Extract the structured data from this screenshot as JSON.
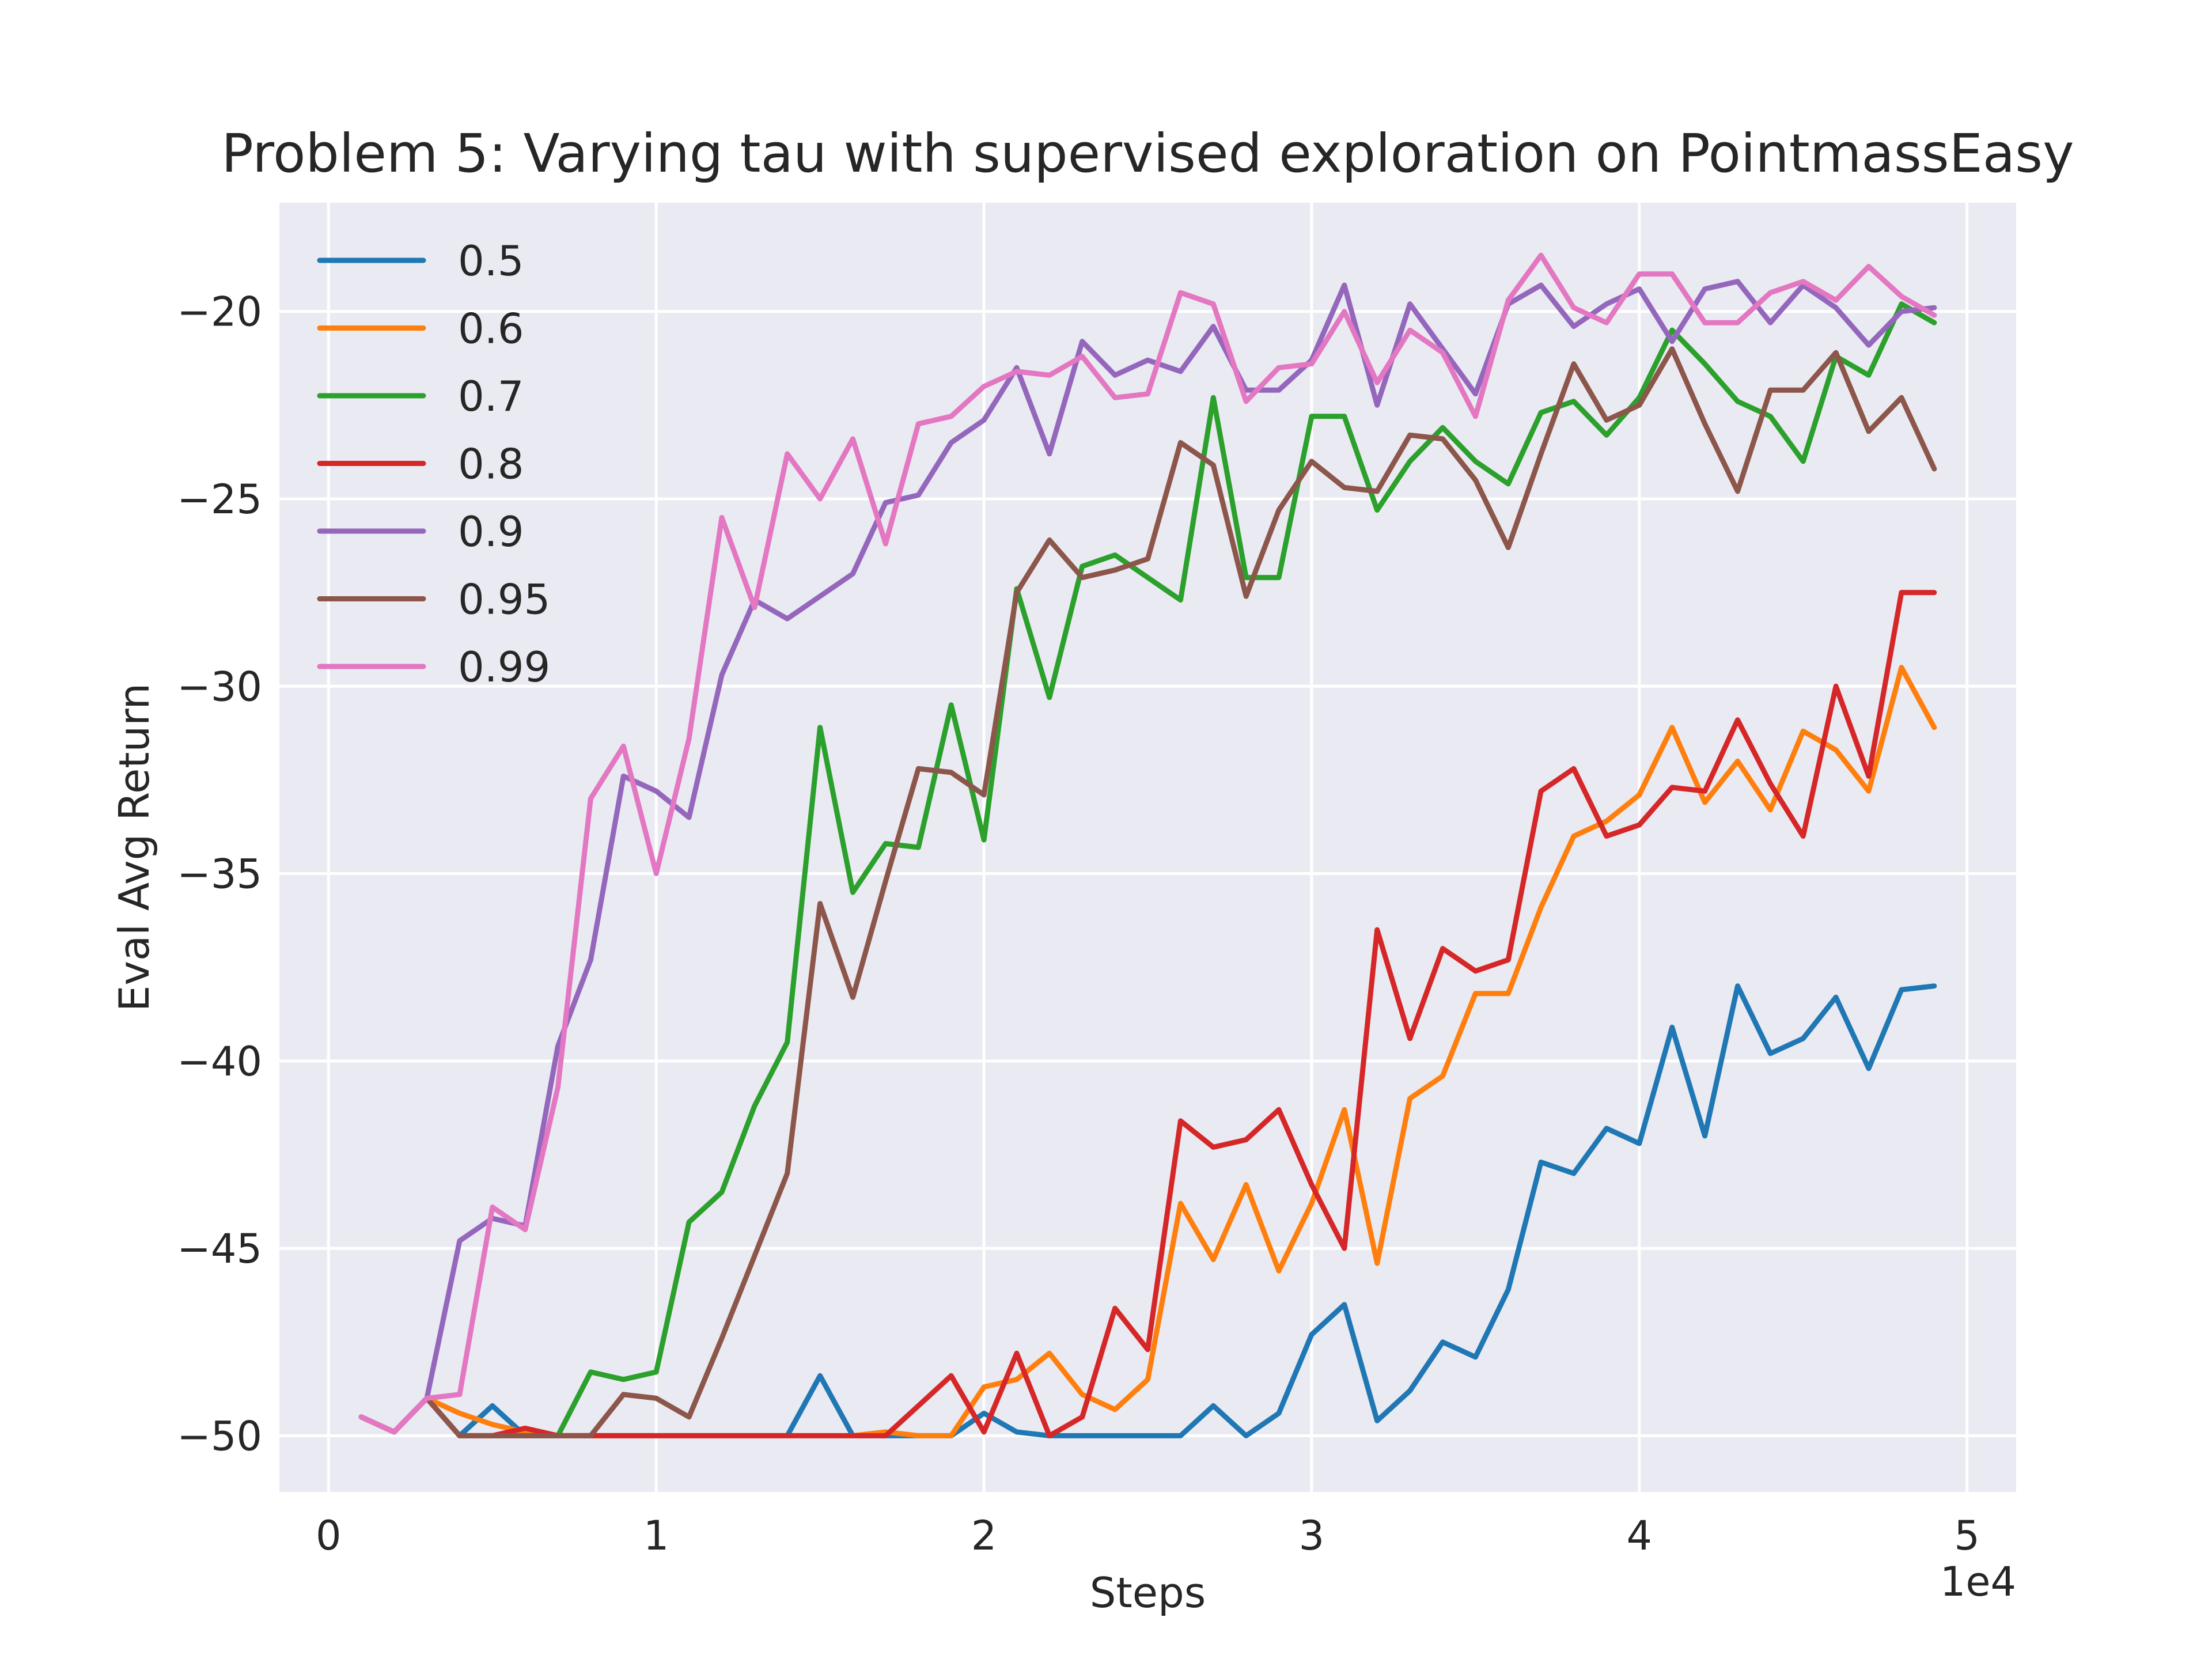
{
  "chart_data": {
    "type": "line",
    "title": "Problem 5: Varying tau with supervised exploration on PointmassEasy",
    "xlabel": "Steps",
    "ylabel": "Eval Avg Return",
    "x_offset_label": "1e4",
    "xlim": [
      -0.15,
      5.15
    ],
    "ylim": [
      -51.5,
      -17.1
    ],
    "xticks": [
      0,
      1,
      2,
      3,
      4,
      5
    ],
    "xtick_labels": [
      "0",
      "1",
      "2",
      "3",
      "4",
      "5"
    ],
    "yticks": [
      -50,
      -45,
      -40,
      -35,
      -30,
      -25,
      -20
    ],
    "ytick_labels": [
      "−50",
      "−45",
      "−40",
      "−35",
      "−30",
      "−25",
      "−20"
    ],
    "grid": true,
    "legend_position": "upper-left",
    "x": [
      0.1,
      0.2,
      0.3,
      0.4,
      0.5,
      0.6,
      0.7,
      0.8,
      0.9,
      1.0,
      1.1,
      1.2,
      1.3,
      1.4,
      1.5,
      1.6,
      1.7,
      1.8,
      1.9,
      2.0,
      2.1,
      2.2,
      2.3,
      2.4,
      2.5,
      2.6,
      2.7,
      2.8,
      2.9,
      3.0,
      3.1,
      3.2,
      3.3,
      3.4,
      3.5,
      3.6,
      3.7,
      3.8,
      3.9,
      4.0,
      4.1,
      4.2,
      4.3,
      4.4,
      4.5,
      4.6,
      4.7,
      4.8,
      4.9
    ],
    "series": [
      {
        "name": "0.5",
        "color": "#1f77b4",
        "values": [
          -49.5,
          -49.9,
          -49.0,
          -50.0,
          -49.2,
          -50.0,
          -50.0,
          -50.0,
          -50.0,
          -50.0,
          -50.0,
          -50.0,
          -50.0,
          -50.0,
          -48.4,
          -50.0,
          -50.0,
          -50.0,
          -50.0,
          -49.4,
          -49.9,
          -50.0,
          -50.0,
          -50.0,
          -50.0,
          -50.0,
          -49.2,
          -50.0,
          -49.4,
          -47.3,
          -46.5,
          -49.6,
          -48.8,
          -47.5,
          -47.9,
          -46.1,
          -42.7,
          -43.0,
          -41.8,
          -42.2,
          -39.1,
          -42.0,
          -38.0,
          -39.8,
          -39.4,
          -38.3,
          -40.2,
          -38.1,
          -38.0
        ]
      },
      {
        "name": "0.6",
        "color": "#ff7f0e",
        "values": [
          -49.5,
          -49.9,
          -49.0,
          -49.4,
          -49.7,
          -49.9,
          -50.0,
          -50.0,
          -50.0,
          -50.0,
          -50.0,
          -50.0,
          -50.0,
          -50.0,
          -50.0,
          -50.0,
          -49.9,
          -50.0,
          -50.0,
          -48.7,
          -48.5,
          -47.8,
          -48.9,
          -49.3,
          -48.5,
          -43.8,
          -45.3,
          -43.3,
          -45.6,
          -43.8,
          -41.3,
          -45.4,
          -41.0,
          -40.4,
          -38.2,
          -38.2,
          -35.9,
          -34.0,
          -33.6,
          -32.9,
          -31.1,
          -33.1,
          -32.0,
          -33.3,
          -31.2,
          -31.7,
          -32.8,
          -29.5,
          -31.1
        ]
      },
      {
        "name": "0.7",
        "color": "#2ca02c",
        "values": [
          -49.5,
          -49.9,
          -49.0,
          -50.0,
          -50.0,
          -50.0,
          -50.0,
          -48.3,
          -48.5,
          -48.3,
          -44.3,
          -43.5,
          -41.2,
          -39.5,
          -31.1,
          -35.5,
          -34.2,
          -34.3,
          -30.5,
          -34.1,
          -27.4,
          -30.3,
          -26.8,
          -26.5,
          -27.1,
          -27.7,
          -22.3,
          -27.1,
          -27.1,
          -22.8,
          -22.8,
          -25.3,
          -24.0,
          -23.1,
          -24.0,
          -24.6,
          -22.7,
          -22.4,
          -23.3,
          -22.3,
          -20.5,
          -21.4,
          -22.4,
          -22.8,
          -24.0,
          -21.2,
          -21.7,
          -19.8,
          -20.3
        ]
      },
      {
        "name": "0.8",
        "color": "#d62728",
        "values": [
          -49.5,
          -49.9,
          -49.0,
          -50.0,
          -50.0,
          -49.8,
          -50.0,
          -50.0,
          -50.0,
          -50.0,
          -50.0,
          -50.0,
          -50.0,
          -50.0,
          -50.0,
          -50.0,
          -50.0,
          -49.2,
          -48.4,
          -49.9,
          -47.8,
          -50.0,
          -49.5,
          -46.6,
          -47.7,
          -41.6,
          -42.3,
          -42.1,
          -41.3,
          -43.3,
          -45.0,
          -36.5,
          -39.4,
          -37.0,
          -37.6,
          -37.3,
          -32.8,
          -32.2,
          -34.0,
          -33.7,
          -32.7,
          -32.8,
          -30.9,
          -32.6,
          -34.0,
          -30.0,
          -32.4,
          -27.5,
          -27.5
        ]
      },
      {
        "name": "0.9",
        "color": "#9467bd",
        "values": [
          -49.5,
          -49.9,
          -49.0,
          -44.8,
          -44.2,
          -44.4,
          -39.6,
          -37.3,
          -32.4,
          -32.8,
          -33.5,
          -29.7,
          -27.7,
          -28.2,
          -27.6,
          -27.0,
          -25.1,
          -24.9,
          -23.5,
          -22.9,
          -21.5,
          -23.8,
          -20.8,
          -21.7,
          -21.3,
          -21.6,
          -20.4,
          -22.1,
          -22.1,
          -21.3,
          -19.3,
          -22.5,
          -19.8,
          -21.0,
          -22.2,
          -19.8,
          -19.3,
          -20.4,
          -19.8,
          -19.4,
          -20.8,
          -19.4,
          -19.2,
          -20.3,
          -19.3,
          -19.9,
          -20.9,
          -20.0,
          -19.9
        ]
      },
      {
        "name": "0.95",
        "color": "#8c564b",
        "values": [
          -49.5,
          -49.9,
          -49.0,
          -50.0,
          -50.0,
          -50.0,
          -50.0,
          -50.0,
          -48.9,
          -49.0,
          -49.5,
          -47.4,
          -45.2,
          -43.0,
          -35.8,
          -38.3,
          -35.2,
          -32.2,
          -32.3,
          -32.9,
          -27.5,
          -26.1,
          -27.1,
          -26.9,
          -26.6,
          -23.5,
          -24.1,
          -27.6,
          -25.3,
          -24.0,
          -24.7,
          -24.8,
          -23.3,
          -23.4,
          -24.5,
          -26.3,
          -23.8,
          -21.4,
          -22.9,
          -22.5,
          -21.0,
          -23.0,
          -24.8,
          -22.1,
          -22.1,
          -21.1,
          -23.2,
          -22.3,
          -24.2
        ]
      },
      {
        "name": "0.99",
        "color": "#e377c2",
        "values": [
          -49.5,
          -49.9,
          -49.0,
          -48.9,
          -43.9,
          -44.5,
          -40.7,
          -33.0,
          -31.6,
          -35.0,
          -31.4,
          -25.5,
          -27.9,
          -23.8,
          -25.0,
          -23.4,
          -26.2,
          -23.0,
          -22.8,
          -22.0,
          -21.6,
          -21.7,
          -21.2,
          -22.3,
          -22.2,
          -19.5,
          -19.8,
          -22.4,
          -21.5,
          -21.4,
          -20.0,
          -21.9,
          -20.5,
          -21.1,
          -22.8,
          -19.7,
          -18.5,
          -19.9,
          -20.3,
          -19.0,
          -19.0,
          -20.3,
          -20.3,
          -19.5,
          -19.2,
          -19.7,
          -18.8,
          -19.6,
          -20.1
        ]
      }
    ]
  }
}
